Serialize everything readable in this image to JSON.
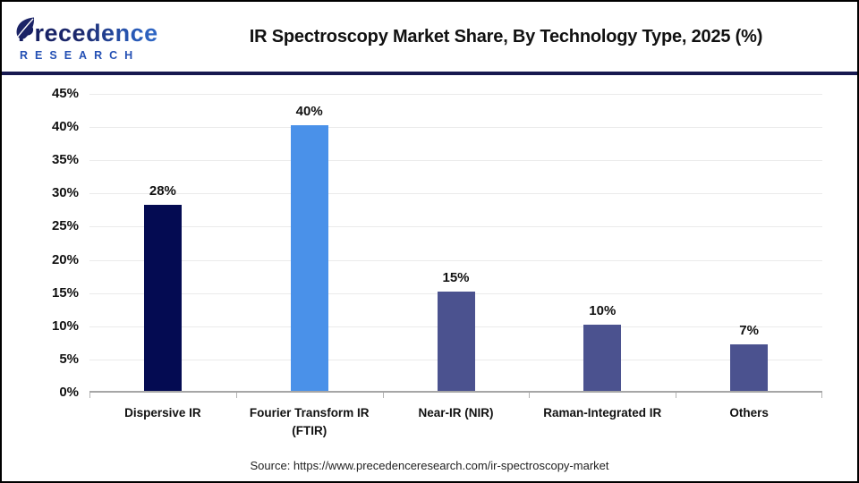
{
  "logo": {
    "text": "Precedence",
    "subtext": "RESEARCH"
  },
  "header": {
    "title": "IR Spectroscopy Market Share, By Technology Type, 2025 (%)"
  },
  "chart_data": {
    "type": "bar",
    "title": "IR Spectroscopy Market Share, By Technology Type, 2025 (%)",
    "categories": [
      "Dispersive IR",
      "Fourier Transform IR (FTIR)",
      "Near-IR (NIR)",
      "Raman-Integrated IR",
      "Others"
    ],
    "values": [
      28,
      40,
      15,
      10,
      7
    ],
    "value_labels": [
      "28%",
      "40%",
      "15%",
      "10%",
      "7%"
    ],
    "bar_colors": [
      "#040b52",
      "#4a91e9",
      "#4b528f",
      "#4b528f",
      "#4b528f"
    ],
    "ylim": [
      0,
      45
    ],
    "ytick_step": 5,
    "ytick_labels": [
      "0%",
      "5%",
      "10%",
      "15%",
      "20%",
      "25%",
      "30%",
      "35%",
      "40%",
      "45%"
    ],
    "xlabel": "",
    "ylabel": "",
    "grid": "horizontal",
    "legend": "none"
  },
  "footer": {
    "source": "Source: https://www.precedenceresearch.com/ir-spectroscopy-market"
  },
  "colors": {
    "divider_navy": "#171950",
    "gridline": "#ebebeb",
    "axis_line": "#a6a6a6",
    "logo_navy": "#1d2a6e",
    "logo_blue": "#3a7ad8",
    "logo_sub_blue": "#2450b4"
  }
}
